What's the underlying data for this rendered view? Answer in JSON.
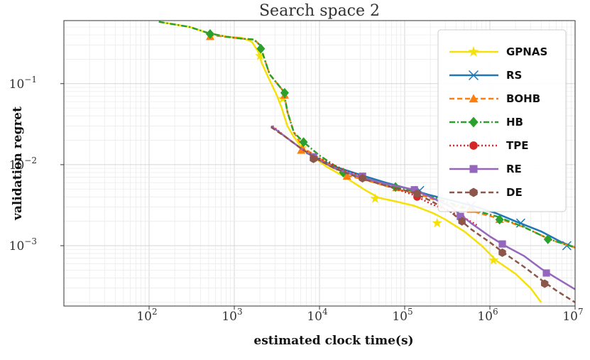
{
  "chart_data": {
    "type": "line",
    "title": "Search space 2",
    "xlabel": "estimated clock time(s)",
    "ylabel": "validation regret",
    "xscale": "log",
    "yscale": "log",
    "xlim": [
      10,
      10000000
    ],
    "ylim": [
      0.00018,
      0.6
    ],
    "grid": true,
    "legend_position": "top-right",
    "x_ticks": [
      {
        "value": 100,
        "base": "10",
        "exp": "2"
      },
      {
        "value": 1000,
        "base": "10",
        "exp": "3"
      },
      {
        "value": 10000,
        "base": "10",
        "exp": "4"
      },
      {
        "value": 100000,
        "base": "10",
        "exp": "5"
      },
      {
        "value": 1000000,
        "base": "10",
        "exp": "6"
      },
      {
        "value": 10000000,
        "base": "10",
        "exp": "7"
      }
    ],
    "y_ticks": [
      {
        "value": 0.1,
        "base": "10",
        "exp": "−1"
      },
      {
        "value": 0.01,
        "base": "10",
        "exp": "−2"
      },
      {
        "value": 0.001,
        "base": "10",
        "exp": "−3"
      }
    ],
    "series": [
      {
        "name": "GPNAS",
        "color": "#f5e10a",
        "dash": "solid",
        "marker": "star",
        "points": [
          [
            130,
            0.58
          ],
          [
            300,
            0.5
          ],
          [
            500,
            0.42
          ],
          [
            800,
            0.38
          ],
          [
            1200,
            0.37
          ],
          [
            1600,
            0.33
          ],
          [
            1900,
            0.25
          ],
          [
            2100,
            0.18
          ],
          [
            2500,
            0.12
          ],
          [
            3100,
            0.075
          ],
          [
            3600,
            0.05
          ],
          [
            4200,
            0.03
          ],
          [
            5000,
            0.022
          ],
          [
            6000,
            0.017
          ],
          [
            8000,
            0.013
          ],
          [
            12000,
            0.0095
          ],
          [
            20000,
            0.007
          ],
          [
            35000,
            0.0048
          ],
          [
            50000,
            0.0039
          ],
          [
            80000,
            0.0035
          ],
          [
            130000,
            0.0031
          ],
          [
            220000,
            0.0025
          ],
          [
            300000,
            0.0021
          ],
          [
            500000,
            0.0015
          ],
          [
            800000,
            0.001
          ],
          [
            1200000,
            0.00065
          ],
          [
            2000000,
            0.00045
          ],
          [
            3000000,
            0.0003
          ],
          [
            4000000,
            0.0002
          ]
        ],
        "markers": [
          [
            530,
            0.4
          ],
          [
            2000,
            0.22
          ],
          [
            3700,
            0.065
          ],
          [
            6200,
            0.016
          ],
          [
            45000,
            0.0038
          ],
          [
            240000,
            0.0019
          ],
          [
            1100000,
            0.00066
          ]
        ]
      },
      {
        "name": "RS",
        "color": "#1f77b4",
        "dash": "solid",
        "marker": "x",
        "points": [
          [
            7000,
            0.014
          ],
          [
            15000,
            0.0095
          ],
          [
            30000,
            0.0075
          ],
          [
            60000,
            0.006
          ],
          [
            100000,
            0.0052
          ],
          [
            200000,
            0.0042
          ],
          [
            400000,
            0.0035
          ],
          [
            700000,
            0.003
          ],
          [
            1200000,
            0.0025
          ],
          [
            2000000,
            0.002
          ],
          [
            4000000,
            0.0015
          ],
          [
            7000000,
            0.0011
          ],
          [
            10000000,
            0.00095
          ]
        ],
        "markers": [
          [
            150000,
            0.0048
          ],
          [
            600000,
            0.0031
          ],
          [
            2300000,
            0.0019
          ],
          [
            8000000,
            0.001
          ]
        ]
      },
      {
        "name": "BOHB",
        "color": "#ff7f0e",
        "dash": "dashed",
        "marker": "triangle",
        "points": [
          [
            500,
            0.4
          ],
          [
            1200,
            0.36
          ],
          [
            1700,
            0.35
          ],
          [
            2000,
            0.3
          ],
          [
            2200,
            0.22
          ],
          [
            2600,
            0.13
          ],
          [
            3200,
            0.1
          ],
          [
            3800,
            0.08
          ],
          [
            4200,
            0.045
          ],
          [
            5000,
            0.025
          ],
          [
            6500,
            0.016
          ],
          [
            10000,
            0.012
          ],
          [
            20000,
            0.0075
          ],
          [
            40000,
            0.0062
          ],
          [
            80000,
            0.005
          ],
          [
            150000,
            0.0043
          ],
          [
            300000,
            0.0033
          ],
          [
            600000,
            0.0027
          ],
          [
            1200000,
            0.0022
          ],
          [
            2500000,
            0.0017
          ],
          [
            5000000,
            0.0012
          ],
          [
            10000000,
            0.00095
          ]
        ],
        "markers": [
          [
            520,
            0.38
          ],
          [
            3900,
            0.072
          ],
          [
            6100,
            0.015
          ],
          [
            21000,
            0.0072
          ],
          [
            80000,
            0.0052
          ],
          [
            600000,
            0.0028
          ],
          [
            1300000,
            0.0021
          ]
        ]
      },
      {
        "name": "HB",
        "color": "#2ca02c",
        "dash": "dashdot",
        "marker": "diamond",
        "points": [
          [
            130,
            0.58
          ],
          [
            300,
            0.5
          ],
          [
            500,
            0.42
          ],
          [
            800,
            0.38
          ],
          [
            1200,
            0.36
          ],
          [
            1700,
            0.35
          ],
          [
            2000,
            0.3
          ],
          [
            2200,
            0.22
          ],
          [
            2600,
            0.13
          ],
          [
            3200,
            0.1
          ],
          [
            3800,
            0.08
          ],
          [
            4200,
            0.045
          ],
          [
            5000,
            0.025
          ],
          [
            6500,
            0.019
          ],
          [
            10000,
            0.013
          ],
          [
            20000,
            0.008
          ],
          [
            40000,
            0.0065
          ],
          [
            80000,
            0.0053
          ],
          [
            150000,
            0.0045
          ],
          [
            300000,
            0.0035
          ],
          [
            600000,
            0.0028
          ],
          [
            1200000,
            0.0023
          ],
          [
            2500000,
            0.0017
          ],
          [
            5000000,
            0.0012
          ],
          [
            10000000,
            0.00095
          ]
        ],
        "markers": [
          [
            520,
            0.41
          ],
          [
            2050,
            0.27
          ],
          [
            3900,
            0.077
          ],
          [
            6500,
            0.019
          ],
          [
            19000,
            0.008
          ],
          [
            78000,
            0.0053
          ],
          [
            1300000,
            0.0021
          ],
          [
            4800000,
            0.0012
          ]
        ]
      },
      {
        "name": "TPE",
        "color": "#d62728",
        "dash": "dotted",
        "marker": "circle",
        "points": [
          [
            2800,
            0.03
          ],
          [
            4000,
            0.022
          ],
          [
            6000,
            0.016
          ],
          [
            10000,
            0.012
          ],
          [
            20000,
            0.0085
          ],
          [
            40000,
            0.0065
          ],
          [
            80000,
            0.005
          ],
          [
            130000,
            0.0042
          ],
          [
            200000,
            0.0033
          ],
          [
            300000,
            0.0028
          ],
          [
            500000,
            0.0022
          ],
          [
            700000,
            0.0018
          ]
        ],
        "markers": [
          [
            140000,
            0.004
          ],
          [
            460000,
            0.0022
          ]
        ]
      },
      {
        "name": "RE",
        "color": "#9467bd",
        "dash": "solid",
        "marker": "square",
        "points": [
          [
            2700,
            0.03
          ],
          [
            4000,
            0.022
          ],
          [
            6000,
            0.016
          ],
          [
            9000,
            0.012
          ],
          [
            15000,
            0.009
          ],
          [
            30000,
            0.007
          ],
          [
            60000,
            0.0058
          ],
          [
            120000,
            0.005
          ],
          [
            200000,
            0.004
          ],
          [
            350000,
            0.003
          ],
          [
            600000,
            0.0019
          ],
          [
            1000000,
            0.0013
          ],
          [
            1500000,
            0.001
          ],
          [
            2500000,
            0.00075
          ],
          [
            4000000,
            0.00052
          ],
          [
            6000000,
            0.0004
          ],
          [
            10000000,
            0.00029
          ]
        ],
        "markers": [
          [
            8500,
            0.0125
          ],
          [
            32000,
            0.0072
          ],
          [
            130000,
            0.0049
          ],
          [
            450000,
            0.0023
          ],
          [
            1400000,
            0.00105
          ],
          [
            4600000,
            0.00046
          ]
        ]
      },
      {
        "name": "DE",
        "color": "#8c564b",
        "dash": "dashed",
        "marker": "hexagon",
        "points": [
          [
            2700,
            0.029
          ],
          [
            4000,
            0.022
          ],
          [
            6000,
            0.016
          ],
          [
            9000,
            0.012
          ],
          [
            15000,
            0.009
          ],
          [
            30000,
            0.0068
          ],
          [
            60000,
            0.0055
          ],
          [
            120000,
            0.0046
          ],
          [
            200000,
            0.0036
          ],
          [
            350000,
            0.0026
          ],
          [
            600000,
            0.0016
          ],
          [
            1000000,
            0.0011
          ],
          [
            1500000,
            0.0008
          ],
          [
            2500000,
            0.00055
          ],
          [
            4000000,
            0.00038
          ],
          [
            6000000,
            0.00028
          ],
          [
            10000000,
            0.0002
          ]
        ],
        "markers": [
          [
            8500,
            0.0118
          ],
          [
            32000,
            0.0068
          ],
          [
            140000,
            0.0044
          ],
          [
            470000,
            0.002
          ],
          [
            1400000,
            0.00082
          ],
          [
            4400000,
            0.00034
          ]
        ]
      }
    ]
  }
}
